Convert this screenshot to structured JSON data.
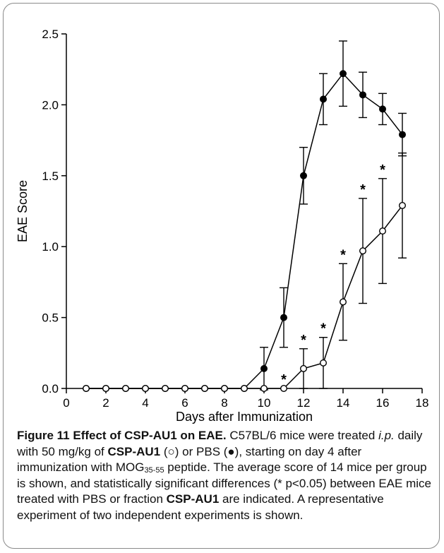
{
  "chart_data": {
    "type": "line",
    "xlabel": "Days after Immunization",
    "ylabel": "EAE Score",
    "xlim": [
      0,
      18
    ],
    "ylim": [
      0,
      2.5
    ],
    "xticks": [
      "0",
      "2",
      "4",
      "6",
      "8",
      "10",
      "12",
      "14",
      "16",
      "18"
    ],
    "yticks": [
      "0.0",
      "0.5",
      "1.0",
      "1.5",
      "2.0",
      "2.5"
    ],
    "grid": false,
    "series": [
      {
        "marker": "filled-circle",
        "x": [
          1,
          2,
          3,
          4,
          5,
          6,
          7,
          8,
          9,
          10,
          11,
          12,
          13,
          14,
          15,
          16,
          17
        ],
        "y": [
          0,
          0,
          0,
          0,
          0,
          0,
          0,
          0,
          0,
          0.14,
          0.5,
          1.5,
          2.04,
          2.22,
          2.07,
          1.97,
          1.79
        ],
        "err": [
          0,
          0,
          0,
          0,
          0,
          0,
          0,
          0,
          0,
          0.15,
          0.21,
          0.2,
          0.18,
          0.23,
          0.16,
          0.11,
          0.15
        ]
      },
      {
        "marker": "open-circle",
        "x": [
          1,
          2,
          3,
          4,
          5,
          6,
          7,
          8,
          9,
          10,
          11,
          12,
          13,
          14,
          15,
          16,
          17
        ],
        "y": [
          0,
          0,
          0,
          0,
          0,
          0,
          0,
          0,
          0,
          0,
          0,
          0.14,
          0.18,
          0.61,
          0.97,
          1.11,
          1.29
        ],
        "err": [
          0,
          0,
          0,
          0,
          0,
          0,
          0,
          0,
          0,
          0,
          0,
          0.14,
          0.18,
          0.27,
          0.37,
          0.37,
          0.37
        ]
      }
    ],
    "significance": {
      "symbol": "*",
      "x": [
        11,
        12,
        13,
        14,
        15,
        16
      ]
    }
  },
  "caption": {
    "figure_label": "Figure 11 Effect of CSP-AU1 on EAE.",
    "t1": " C57BL/6 mice were treated ",
    "ip": "i.p.",
    "t2": " daily with 50 mg/kg of ",
    "compound": "CSP-AU1",
    "t3": " (○) or PBS (●), starting on day 4 after immunization with MOG",
    "mog_sub": "35-55",
    "t4": " peptide. The average score of 14 mice per group is shown, and statistically significant differences (* p<0.05) between EAE mice treated with PBS or fraction ",
    "compound2": "CSP-AU1",
    "t5": " are indicated. A representative experiment of two independent experiments is shown."
  }
}
